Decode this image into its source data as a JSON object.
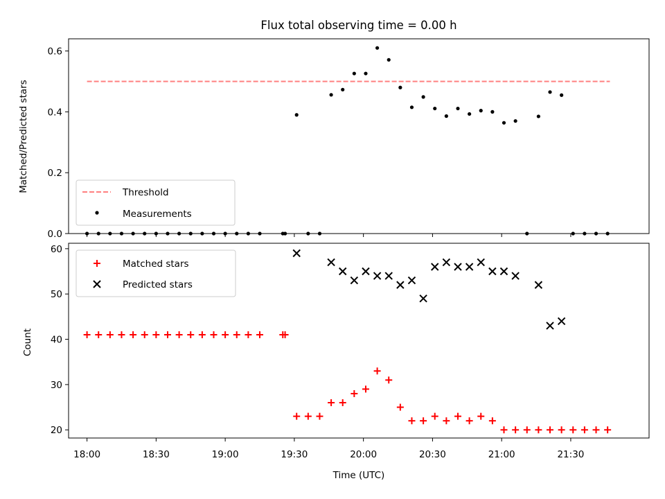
{
  "title": "Flux total observing time = 0.00 h",
  "colors": {
    "threshold": "#ff7f7f",
    "measurements": "#000000",
    "matched": "#ff0000",
    "predicted": "#000000"
  },
  "chart_data": [
    {
      "type": "scatter",
      "panel": "top",
      "title": "Flux total observing time = 0.00 h",
      "ylabel": "Matched/Predicted stars",
      "xlabel": "",
      "xlim": [
        "17:52",
        "22:04"
      ],
      "ylim": [
        0,
        0.64
      ],
      "yticks": [
        "0.0",
        "0.2",
        "0.4",
        "0.6"
      ],
      "legend": {
        "placement": "lower-left",
        "entries": [
          "Threshold",
          "Measurements"
        ]
      },
      "threshold": {
        "name": "Threshold",
        "y": 0.5,
        "x": [
          "18:00",
          "21:47"
        ],
        "style": "dashed",
        "color": "#ff7f7f"
      },
      "series": [
        {
          "name": "Measurements",
          "marker": "dot",
          "points": [
            [
              "18:00",
              0
            ],
            [
              "18:05",
              0
            ],
            [
              "18:10",
              0
            ],
            [
              "18:15",
              0
            ],
            [
              "18:20",
              0
            ],
            [
              "18:25",
              0
            ],
            [
              "18:30",
              0
            ],
            [
              "18:35",
              0
            ],
            [
              "18:40",
              0
            ],
            [
              "18:45",
              0
            ],
            [
              "18:50",
              0
            ],
            [
              "18:55",
              0
            ],
            [
              "19:00",
              0
            ],
            [
              "19:05",
              0
            ],
            [
              "19:10",
              0
            ],
            [
              "19:15",
              0
            ],
            [
              "19:25",
              0
            ],
            [
              "19:26",
              0
            ],
            [
              "19:31",
              0.39
            ],
            [
              "19:36",
              0
            ],
            [
              "19:41",
              0
            ],
            [
              "19:46",
              0.456
            ],
            [
              "19:51",
              0.473
            ],
            [
              "19:56",
              0.526
            ],
            [
              "20:01",
              0.526
            ],
            [
              "20:06",
              0.61
            ],
            [
              "20:11",
              0.571
            ],
            [
              "20:16",
              0.48
            ],
            [
              "20:21",
              0.415
            ],
            [
              "20:26",
              0.449
            ],
            [
              "20:31",
              0.411
            ],
            [
              "20:36",
              0.386
            ],
            [
              "20:41",
              0.411
            ],
            [
              "20:46",
              0.393
            ],
            [
              "20:51",
              0.404
            ],
            [
              "20:56",
              0.4
            ],
            [
              "21:01",
              0.364
            ],
            [
              "21:06",
              0.37
            ],
            [
              "21:11",
              0
            ],
            [
              "21:16",
              0.385
            ],
            [
              "21:21",
              0.465
            ],
            [
              "21:26",
              0.455
            ],
            [
              "21:31",
              0
            ],
            [
              "21:36",
              0
            ],
            [
              "21:41",
              0
            ],
            [
              "21:46",
              0
            ]
          ]
        }
      ]
    },
    {
      "type": "scatter",
      "panel": "bottom",
      "ylabel": "Count",
      "xlabel": "Time (UTC)",
      "xlim": [
        "17:52",
        "22:04"
      ],
      "ylim": [
        18.2,
        61.2
      ],
      "yticks": [
        "20",
        "30",
        "40",
        "50",
        "60"
      ],
      "xticks": [
        "18:00",
        "18:30",
        "19:00",
        "19:30",
        "20:00",
        "20:30",
        "21:00",
        "21:30"
      ],
      "legend": {
        "placement": "upper-left",
        "entries": [
          "Matched stars",
          "Predicted stars"
        ]
      },
      "series": [
        {
          "name": "Matched stars",
          "marker": "plus",
          "points": [
            [
              "18:00",
              41
            ],
            [
              "18:05",
              41
            ],
            [
              "18:10",
              41
            ],
            [
              "18:15",
              41
            ],
            [
              "18:20",
              41
            ],
            [
              "18:25",
              41
            ],
            [
              "18:30",
              41
            ],
            [
              "18:35",
              41
            ],
            [
              "18:40",
              41
            ],
            [
              "18:45",
              41
            ],
            [
              "18:50",
              41
            ],
            [
              "18:55",
              41
            ],
            [
              "19:00",
              41
            ],
            [
              "19:05",
              41
            ],
            [
              "19:10",
              41
            ],
            [
              "19:15",
              41
            ],
            [
              "19:25",
              41
            ],
            [
              "19:26",
              41
            ],
            [
              "19:31",
              23
            ],
            [
              "19:36",
              23
            ],
            [
              "19:41",
              23
            ],
            [
              "19:46",
              26
            ],
            [
              "19:51",
              26
            ],
            [
              "19:56",
              28
            ],
            [
              "20:01",
              29
            ],
            [
              "20:06",
              33
            ],
            [
              "20:11",
              31
            ],
            [
              "20:16",
              25
            ],
            [
              "20:21",
              22
            ],
            [
              "20:26",
              22
            ],
            [
              "20:31",
              23
            ],
            [
              "20:36",
              22
            ],
            [
              "20:41",
              23
            ],
            [
              "20:46",
              22
            ],
            [
              "20:51",
              23
            ],
            [
              "20:56",
              22
            ],
            [
              "21:01",
              20
            ],
            [
              "21:06",
              20
            ],
            [
              "21:11",
              20
            ],
            [
              "21:16",
              20
            ],
            [
              "21:21",
              20
            ],
            [
              "21:26",
              20
            ],
            [
              "21:31",
              20
            ],
            [
              "21:36",
              20
            ],
            [
              "21:41",
              20
            ],
            [
              "21:46",
              20
            ]
          ]
        },
        {
          "name": "Predicted stars",
          "marker": "x",
          "points": [
            [
              "19:31",
              59
            ],
            [
              "19:46",
              57
            ],
            [
              "19:51",
              55
            ],
            [
              "19:56",
              53
            ],
            [
              "20:01",
              55
            ],
            [
              "20:06",
              54
            ],
            [
              "20:11",
              54
            ],
            [
              "20:16",
              52
            ],
            [
              "20:21",
              53
            ],
            [
              "20:26",
              49
            ],
            [
              "20:31",
              56
            ],
            [
              "20:36",
              57
            ],
            [
              "20:41",
              56
            ],
            [
              "20:46",
              56
            ],
            [
              "20:51",
              57
            ],
            [
              "20:56",
              55
            ],
            [
              "21:01",
              55
            ],
            [
              "21:06",
              54
            ],
            [
              "21:16",
              52
            ],
            [
              "21:21",
              43
            ],
            [
              "21:26",
              44
            ]
          ]
        }
      ]
    }
  ]
}
